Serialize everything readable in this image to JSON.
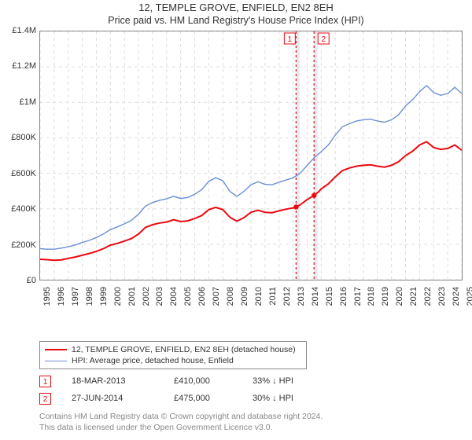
{
  "title": "12, TEMPLE GROVE, ENFIELD, EN2 8EH",
  "subtitle": "Price paid vs. HM Land Registry's House Price Index (HPI)",
  "chart": {
    "type": "line",
    "xlim_years": [
      1995,
      2025
    ],
    "ylim": [
      0,
      1400000
    ],
    "ytick_step": 200000,
    "ytick_labels": [
      "£0",
      "£200K",
      "£400K",
      "£600K",
      "£800K",
      "£1M",
      "£1.2M",
      "£1.4M"
    ],
    "xtick_years": [
      1995,
      1996,
      1997,
      1998,
      1999,
      2000,
      2001,
      2002,
      2003,
      2004,
      2005,
      2006,
      2007,
      2008,
      2009,
      2010,
      2011,
      2012,
      2013,
      2014,
      2015,
      2016,
      2017,
      2018,
      2019,
      2020,
      2021,
      2022,
      2023,
      2024,
      2025
    ],
    "background_color": "#ffffff",
    "grid_color": "#dddddd",
    "grid_dash": "4,4",
    "axis_color": "#888888",
    "series": {
      "subject": {
        "label": "12, TEMPLE GROVE, ENFIELD, EN2 8EH (detached house)",
        "color": "#eb090f",
        "width": 2,
        "points_year_value": [
          [
            1995.0,
            115000
          ],
          [
            1995.5,
            113000
          ],
          [
            1996.0,
            110000
          ],
          [
            1996.5,
            112000
          ],
          [
            1997.0,
            120000
          ],
          [
            1997.5,
            128000
          ],
          [
            1998.0,
            138000
          ],
          [
            1998.5,
            148000
          ],
          [
            1999.0,
            160000
          ],
          [
            1999.5,
            175000
          ],
          [
            2000.0,
            195000
          ],
          [
            2000.5,
            205000
          ],
          [
            2001.0,
            218000
          ],
          [
            2001.5,
            232000
          ],
          [
            2002.0,
            258000
          ],
          [
            2002.5,
            295000
          ],
          [
            2003.0,
            310000
          ],
          [
            2003.5,
            320000
          ],
          [
            2004.0,
            325000
          ],
          [
            2004.5,
            338000
          ],
          [
            2005.0,
            328000
          ],
          [
            2005.5,
            332000
          ],
          [
            2006.0,
            345000
          ],
          [
            2006.5,
            362000
          ],
          [
            2007.0,
            395000
          ],
          [
            2007.5,
            408000
          ],
          [
            2008.0,
            395000
          ],
          [
            2008.5,
            352000
          ],
          [
            2009.0,
            330000
          ],
          [
            2009.5,
            350000
          ],
          [
            2010.0,
            380000
          ],
          [
            2010.5,
            392000
          ],
          [
            2011.0,
            380000
          ],
          [
            2011.5,
            378000
          ],
          [
            2012.0,
            388000
          ],
          [
            2012.5,
            398000
          ],
          [
            2013.0,
            405000
          ],
          [
            2013.21,
            410000
          ],
          [
            2013.5,
            422000
          ],
          [
            2014.0,
            452000
          ],
          [
            2014.49,
            475000
          ],
          [
            2014.8,
            495000
          ],
          [
            2015.0,
            512000
          ],
          [
            2015.5,
            540000
          ],
          [
            2016.0,
            580000
          ],
          [
            2016.5,
            615000
          ],
          [
            2017.0,
            630000
          ],
          [
            2017.5,
            640000
          ],
          [
            2018.0,
            645000
          ],
          [
            2018.5,
            648000
          ],
          [
            2019.0,
            640000
          ],
          [
            2019.5,
            635000
          ],
          [
            2020.0,
            645000
          ],
          [
            2020.5,
            665000
          ],
          [
            2021.0,
            700000
          ],
          [
            2021.5,
            725000
          ],
          [
            2022.0,
            760000
          ],
          [
            2022.5,
            778000
          ],
          [
            2023.0,
            745000
          ],
          [
            2023.5,
            735000
          ],
          [
            2024.0,
            740000
          ],
          [
            2024.5,
            760000
          ],
          [
            2025.0,
            730000
          ]
        ]
      },
      "hpi": {
        "label": "HPI: Average price, detached house, Enfield",
        "color": "#6b8fd4",
        "width": 1.4,
        "points_year_value": [
          [
            1995.0,
            175000
          ],
          [
            1995.5,
            172000
          ],
          [
            1996.0,
            172000
          ],
          [
            1996.5,
            178000
          ],
          [
            1997.0,
            186000
          ],
          [
            1997.5,
            196000
          ],
          [
            1998.0,
            210000
          ],
          [
            1998.5,
            222000
          ],
          [
            1999.0,
            238000
          ],
          [
            1999.5,
            258000
          ],
          [
            2000.0,
            282000
          ],
          [
            2000.5,
            298000
          ],
          [
            2001.0,
            315000
          ],
          [
            2001.5,
            335000
          ],
          [
            2002.0,
            370000
          ],
          [
            2002.5,
            415000
          ],
          [
            2003.0,
            435000
          ],
          [
            2003.5,
            448000
          ],
          [
            2004.0,
            456000
          ],
          [
            2004.5,
            470000
          ],
          [
            2005.0,
            458000
          ],
          [
            2005.5,
            464000
          ],
          [
            2006.0,
            482000
          ],
          [
            2006.5,
            508000
          ],
          [
            2007.0,
            555000
          ],
          [
            2007.5,
            575000
          ],
          [
            2008.0,
            558000
          ],
          [
            2008.5,
            498000
          ],
          [
            2009.0,
            470000
          ],
          [
            2009.5,
            498000
          ],
          [
            2010.0,
            535000
          ],
          [
            2010.5,
            552000
          ],
          [
            2011.0,
            538000
          ],
          [
            2011.5,
            535000
          ],
          [
            2012.0,
            550000
          ],
          [
            2012.5,
            562000
          ],
          [
            2013.0,
            575000
          ],
          [
            2013.5,
            600000
          ],
          [
            2014.0,
            645000
          ],
          [
            2014.5,
            688000
          ],
          [
            2015.0,
            722000
          ],
          [
            2015.5,
            760000
          ],
          [
            2016.0,
            815000
          ],
          [
            2016.5,
            862000
          ],
          [
            2017.0,
            880000
          ],
          [
            2017.5,
            895000
          ],
          [
            2018.0,
            902000
          ],
          [
            2018.5,
            905000
          ],
          [
            2019.0,
            895000
          ],
          [
            2019.5,
            888000
          ],
          [
            2020.0,
            902000
          ],
          [
            2020.5,
            930000
          ],
          [
            2021.0,
            980000
          ],
          [
            2021.5,
            1015000
          ],
          [
            2022.0,
            1060000
          ],
          [
            2022.5,
            1095000
          ],
          [
            2023.0,
            1055000
          ],
          [
            2023.5,
            1040000
          ],
          [
            2024.0,
            1050000
          ],
          [
            2024.5,
            1085000
          ],
          [
            2025.0,
            1050000
          ]
        ]
      }
    },
    "sale_markers": [
      {
        "n": "1",
        "year": 2013.21,
        "value": 410000,
        "band_end_year": 2013.46,
        "band_color": "#e8eaf1",
        "line_color": "#eb090f"
      },
      {
        "n": "2",
        "year": 2014.49,
        "value": 475000,
        "band_end_year": 2014.74,
        "band_color": "#e8eaf1",
        "line_color": "#eb090f"
      }
    ],
    "marker_dot_radius": 3.2
  },
  "legend": [
    {
      "color": "#eb090f",
      "width": 2,
      "text": "12, TEMPLE GROVE, ENFIELD, EN2 8EH (detached house)"
    },
    {
      "color": "#6b8fd4",
      "width": 1.4,
      "text": "HPI: Average price, detached house, Enfield"
    }
  ],
  "sales": [
    {
      "n": "1",
      "date": "18-MAR-2013",
      "price": "£410,000",
      "delta": "33% ↓ HPI"
    },
    {
      "n": "2",
      "date": "27-JUN-2014",
      "price": "£475,000",
      "delta": "30% ↓ HPI"
    }
  ],
  "footer": {
    "line1": "Contains HM Land Registry data © Crown copyright and database right 2024.",
    "line2": "This data is licensed under the Open Government Licence v3.0."
  }
}
